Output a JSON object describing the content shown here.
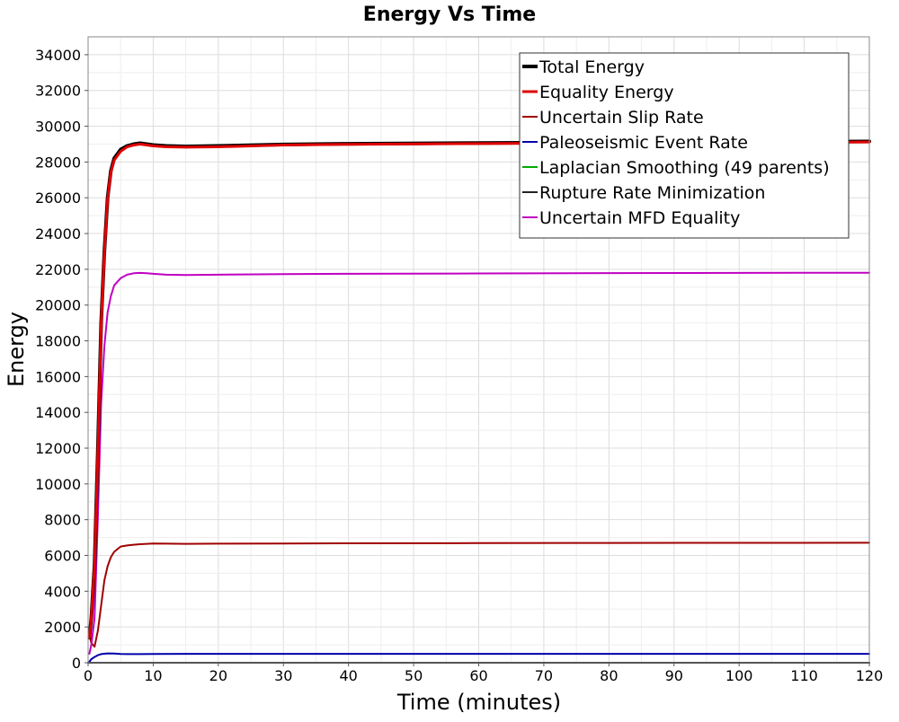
{
  "chart_data": {
    "type": "line",
    "title": "Energy Vs Time",
    "xlabel": "Time (minutes)",
    "ylabel": "Energy",
    "xlim": [
      0,
      120
    ],
    "ylim": [
      0,
      35000
    ],
    "x_ticks": [
      0,
      10,
      20,
      30,
      40,
      50,
      60,
      70,
      80,
      90,
      100,
      110,
      120
    ],
    "y_ticks": [
      0,
      2000,
      4000,
      6000,
      8000,
      10000,
      12000,
      14000,
      16000,
      18000,
      20000,
      22000,
      24000,
      26000,
      28000,
      30000,
      32000,
      34000
    ],
    "grid": true,
    "legend_position": "top-right",
    "series": [
      {
        "name": "Total Energy",
        "color": "#000000",
        "line_width": 4,
        "x": [
          0.2,
          0.5,
          1,
          1.5,
          2,
          2.5,
          3,
          3.5,
          4,
          5,
          6,
          7,
          8,
          9,
          10,
          12,
          15,
          20,
          30,
          40,
          60,
          80,
          100,
          120
        ],
        "y": [
          1400,
          2500,
          5500,
          12000,
          19000,
          23000,
          26000,
          27500,
          28200,
          28700,
          28900,
          29000,
          29050,
          29000,
          28950,
          28900,
          28870,
          28900,
          28980,
          29020,
          29060,
          29100,
          29120,
          29150
        ]
      },
      {
        "name": "Equality Energy",
        "color": "#e00000",
        "line_width": 3,
        "x": [
          0.2,
          0.5,
          1,
          1.5,
          2,
          2.5,
          3,
          3.5,
          4,
          5,
          6,
          7,
          8,
          9,
          10,
          12,
          15,
          20,
          30,
          40,
          60,
          80,
          100,
          120
        ],
        "y": [
          1400,
          2500,
          5400,
          11800,
          18900,
          22900,
          25900,
          27400,
          28100,
          28600,
          28850,
          28950,
          29000,
          28950,
          28900,
          28850,
          28830,
          28850,
          28950,
          28990,
          29030,
          29070,
          29090,
          29120
        ]
      },
      {
        "name": "Uncertain Slip Rate",
        "color": "#a00000",
        "line_width": 2,
        "x": [
          0.2,
          0.5,
          1,
          1.5,
          2,
          2.5,
          3,
          3.5,
          4,
          5,
          6,
          7,
          8,
          10,
          12,
          15,
          20,
          30,
          40,
          60,
          80,
          100,
          120
        ],
        "y": [
          1600,
          1100,
          900,
          1800,
          3200,
          4600,
          5400,
          5900,
          6200,
          6500,
          6560,
          6600,
          6630,
          6670,
          6660,
          6650,
          6660,
          6670,
          6680,
          6690,
          6700,
          6705,
          6710
        ]
      },
      {
        "name": "Paleoseismic Event Rate",
        "color": "#0000aa",
        "line_width": 2,
        "x": [
          0.2,
          0.5,
          1,
          1.5,
          2,
          3,
          4,
          5,
          6,
          8,
          10,
          15,
          20,
          40,
          60,
          80,
          100,
          120
        ],
        "y": [
          50,
          200,
          320,
          420,
          480,
          520,
          510,
          490,
          480,
          480,
          490,
          495,
          495,
          495,
          495,
          495,
          495,
          495
        ]
      },
      {
        "name": "Laplacian Smoothing (49 parents)",
        "color": "#00aa00",
        "line_width": 2,
        "x": [
          0,
          120
        ],
        "y": [
          0,
          0
        ]
      },
      {
        "name": "Rupture Rate Minimization",
        "color": "#222222",
        "line_width": 2,
        "x": [
          0,
          120
        ],
        "y": [
          0,
          0
        ]
      },
      {
        "name": "Uncertain MFD Equality",
        "color": "#c000c0",
        "line_width": 2,
        "x": [
          0.2,
          0.5,
          1,
          1.5,
          2,
          2.5,
          3,
          3.5,
          4,
          5,
          6,
          7,
          8,
          9,
          10,
          12,
          15,
          20,
          30,
          40,
          60,
          80,
          100,
          120
        ],
        "y": [
          500,
          1000,
          2500,
          8200,
          14500,
          17700,
          19600,
          20500,
          21100,
          21500,
          21700,
          21780,
          21800,
          21780,
          21750,
          21700,
          21680,
          21700,
          21730,
          21750,
          21770,
          21790,
          21800,
          21810
        ]
      }
    ]
  }
}
